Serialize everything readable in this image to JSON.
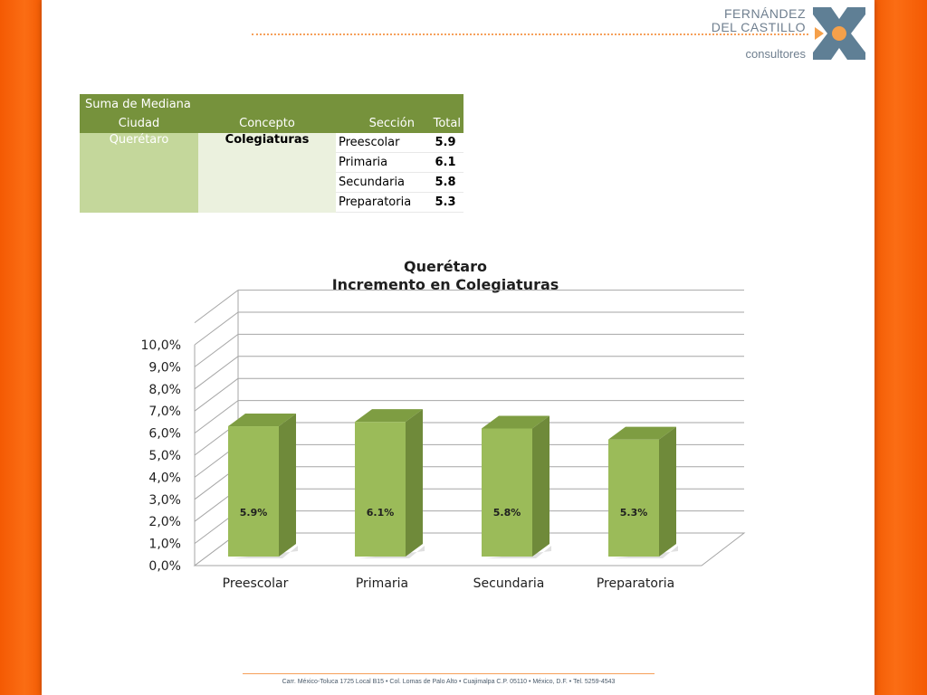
{
  "brand": {
    "line1": "FERNÁNDEZ",
    "line2": "DEL CASTILLO",
    "sub": "consultores",
    "logo_icon": "x-logo-icon",
    "colors": {
      "slate": "#5f7f95",
      "orange": "#f5a04a"
    }
  },
  "pivot": {
    "corner_label": "Suma de Mediana",
    "headers": [
      "Ciudad",
      "Concepto",
      "Sección",
      "Total"
    ],
    "city": "Querétaro",
    "concept": "Colegiaturas",
    "rows": [
      {
        "seccion": "Preescolar",
        "total": "5.9"
      },
      {
        "seccion": "Primaria",
        "total": "6.1"
      },
      {
        "seccion": "Secundaria",
        "total": "5.8"
      },
      {
        "seccion": "Preparatoria",
        "total": "5.3"
      }
    ]
  },
  "chart_data": {
    "type": "bar",
    "title": "Querétaro",
    "subtitle": "Incremento en Colegiaturas",
    "categories": [
      "Preescolar",
      "Primaria",
      "Secundaria",
      "Preparatoria"
    ],
    "values": [
      5.9,
      6.1,
      5.8,
      5.3
    ],
    "data_labels": [
      "5.9%",
      "6.1%",
      "5.8%",
      "5.3%"
    ],
    "y_ticks": [
      "0,0%",
      "1,0%",
      "2,0%",
      "3,0%",
      "4,0%",
      "5,0%",
      "6,0%",
      "7,0%",
      "8,0%",
      "9,0%",
      "10,0%"
    ],
    "ylim": [
      0,
      11
    ],
    "grid": true,
    "legend": "none",
    "bar_color": "#9bbb59",
    "bar_side_color": "#6f8a3a",
    "bar_top_color": "#7e9d42"
  },
  "footer": {
    "address": "Carr. México-Toluca 1725 Local B15 • Col. Lomas de Palo Alto • Cuajimalpa C.P. 05110 • México, D.F. • Tel. 5259-4543"
  }
}
